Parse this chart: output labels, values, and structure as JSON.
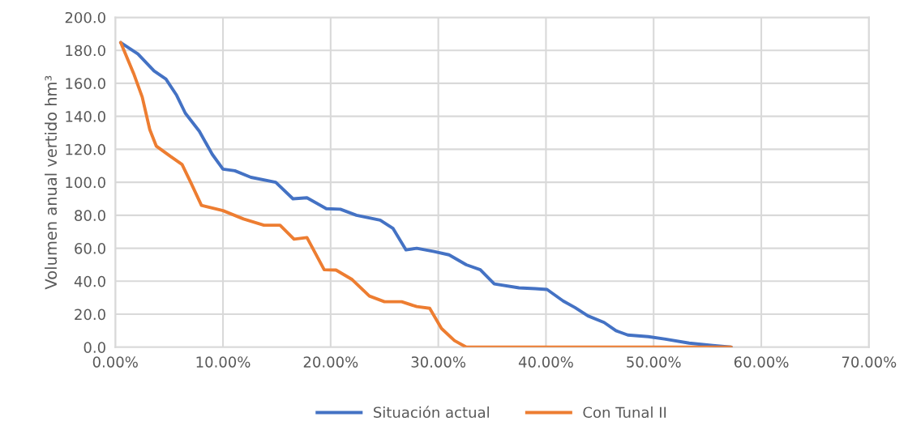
{
  "chart_data": {
    "type": "line",
    "ylabel": "Volumen anual vertido hm³",
    "xlim": [
      0,
      70
    ],
    "xticks": [
      {
        "value": 0,
        "label": "0.00%"
      },
      {
        "value": 10,
        "label": "10.00%"
      },
      {
        "value": 20,
        "label": "20.00%"
      },
      {
        "value": 30,
        "label": "30.00%"
      },
      {
        "value": 40,
        "label": "40.00%"
      },
      {
        "value": 50,
        "label": "50.00%"
      },
      {
        "value": 60,
        "label": "60.00%"
      },
      {
        "value": 70,
        "label": "70.00%"
      }
    ],
    "ylim": [
      0,
      200
    ],
    "yticks": [
      {
        "value": 0,
        "label": "0.0"
      },
      {
        "value": 20,
        "label": "20.0"
      },
      {
        "value": 40,
        "label": "40.0"
      },
      {
        "value": 60,
        "label": "60.0"
      },
      {
        "value": 80,
        "label": "80.0"
      },
      {
        "value": 100,
        "label": "100.0"
      },
      {
        "value": 120,
        "label": "120.0"
      },
      {
        "value": 140,
        "label": "140.0"
      },
      {
        "value": 160,
        "label": "160.0"
      },
      {
        "value": 180,
        "label": "180.0"
      },
      {
        "value": 200,
        "label": "200.0"
      }
    ],
    "grid": true,
    "legend": "bottom",
    "marker": "none",
    "line_style": "solid",
    "series": [
      {
        "name": "Situación actual",
        "color": "#4472c4",
        "x": [
          0.5,
          2.1,
          3.6,
          4.7,
          5.7,
          6.5,
          7.8,
          9,
          10,
          11.1,
          12.6,
          14.9,
          16.5,
          17.8,
          19.6,
          20.9,
          22.4,
          24.6,
          25.8,
          27,
          28,
          29.6,
          31,
          32.6,
          33.9,
          35.2,
          37.5,
          39,
          40.1,
          41.6,
          42.7,
          43.9,
          45.4,
          46.5,
          47.6,
          49.5,
          51,
          53.3,
          55.5,
          57.2
        ],
        "values": [
          184.7,
          177.8,
          167.5,
          162.6,
          152.7,
          141.9,
          131,
          117,
          108,
          107,
          103,
          100,
          90,
          90.6,
          84,
          83.7,
          80,
          77,
          72,
          59,
          60,
          58,
          56,
          50,
          47,
          38.4,
          36,
          35.5,
          35,
          28,
          24,
          19,
          15,
          10,
          7.4,
          6.4,
          5,
          2.5,
          1,
          0
        ]
      },
      {
        "name": "Con Tunal II",
        "color": "#ed7d31",
        "x": [
          0.5,
          1.7,
          2.5,
          3.2,
          3.8,
          5.1,
          6.2,
          7,
          8,
          10,
          11.9,
          13.8,
          15.3,
          16.6,
          17.8,
          19.4,
          20.5,
          22,
          23.6,
          25,
          26.6,
          28,
          29.2,
          30.3,
          31.5,
          32.6,
          57.2
        ],
        "values": [
          184.7,
          166,
          151.7,
          132,
          122,
          115.8,
          110.8,
          100,
          86,
          82.8,
          77.8,
          74,
          74,
          65.5,
          66.5,
          47,
          46.8,
          41,
          31,
          27.6,
          27.6,
          24.6,
          23.6,
          11.3,
          4,
          0,
          0
        ]
      }
    ]
  }
}
